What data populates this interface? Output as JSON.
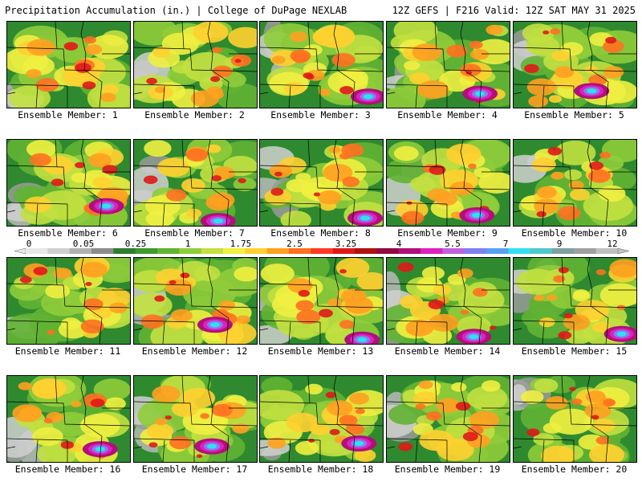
{
  "header": {
    "title": "Precipitation Accumulation (in.) | College of DuPage NEXLAB",
    "run_info": "12Z GEFS | F216 Valid: 12Z SAT MAY 31 2025"
  },
  "panels": [
    {
      "label": "Ensemble Member: 1"
    },
    {
      "label": "Ensemble Member: 2"
    },
    {
      "label": "Ensemble Member: 3"
    },
    {
      "label": "Ensemble Member: 4"
    },
    {
      "label": "Ensemble Member: 5"
    },
    {
      "label": "Ensemble Member: 6"
    },
    {
      "label": "Ensemble Member: 7"
    },
    {
      "label": "Ensemble Member: 8"
    },
    {
      "label": "Ensemble Member: 9"
    },
    {
      "label": "Ensemble Member: 10"
    },
    {
      "label": "Ensemble Member: 11"
    },
    {
      "label": "Ensemble Member: 12"
    },
    {
      "label": "Ensemble Member: 13"
    },
    {
      "label": "Ensemble Member: 14"
    },
    {
      "label": "Ensemble Member: 15"
    },
    {
      "label": "Ensemble Member: 16"
    },
    {
      "label": "Ensemble Member: 17"
    },
    {
      "label": "Ensemble Member: 18"
    },
    {
      "label": "Ensemble Member: 19"
    },
    {
      "label": "Ensemble Member: 20"
    }
  ],
  "colorbar": {
    "tick_labels": [
      "0",
      "0.05",
      "0.25",
      "1",
      "1.75",
      "2.5",
      "3.25",
      "4",
      "5.5",
      "7",
      "9",
      "12"
    ],
    "colors": [
      "#e8e8e8",
      "#cfcfcf",
      "#b0b0b0",
      "#8c8c8c",
      "#2e7d2e",
      "#3f9a2e",
      "#62b333",
      "#8fcc3a",
      "#c2e040",
      "#f0f040",
      "#ffd030",
      "#ffa020",
      "#ff7020",
      "#ff3a20",
      "#e01818",
      "#b01010",
      "#900a40",
      "#b0107a",
      "#e020c0",
      "#c060e0",
      "#8080f0",
      "#5aa0f0",
      "#30e0f0",
      "#50c8c8",
      "#80a0a0",
      "#a0a0a0",
      "#c0c0c0"
    ]
  }
}
